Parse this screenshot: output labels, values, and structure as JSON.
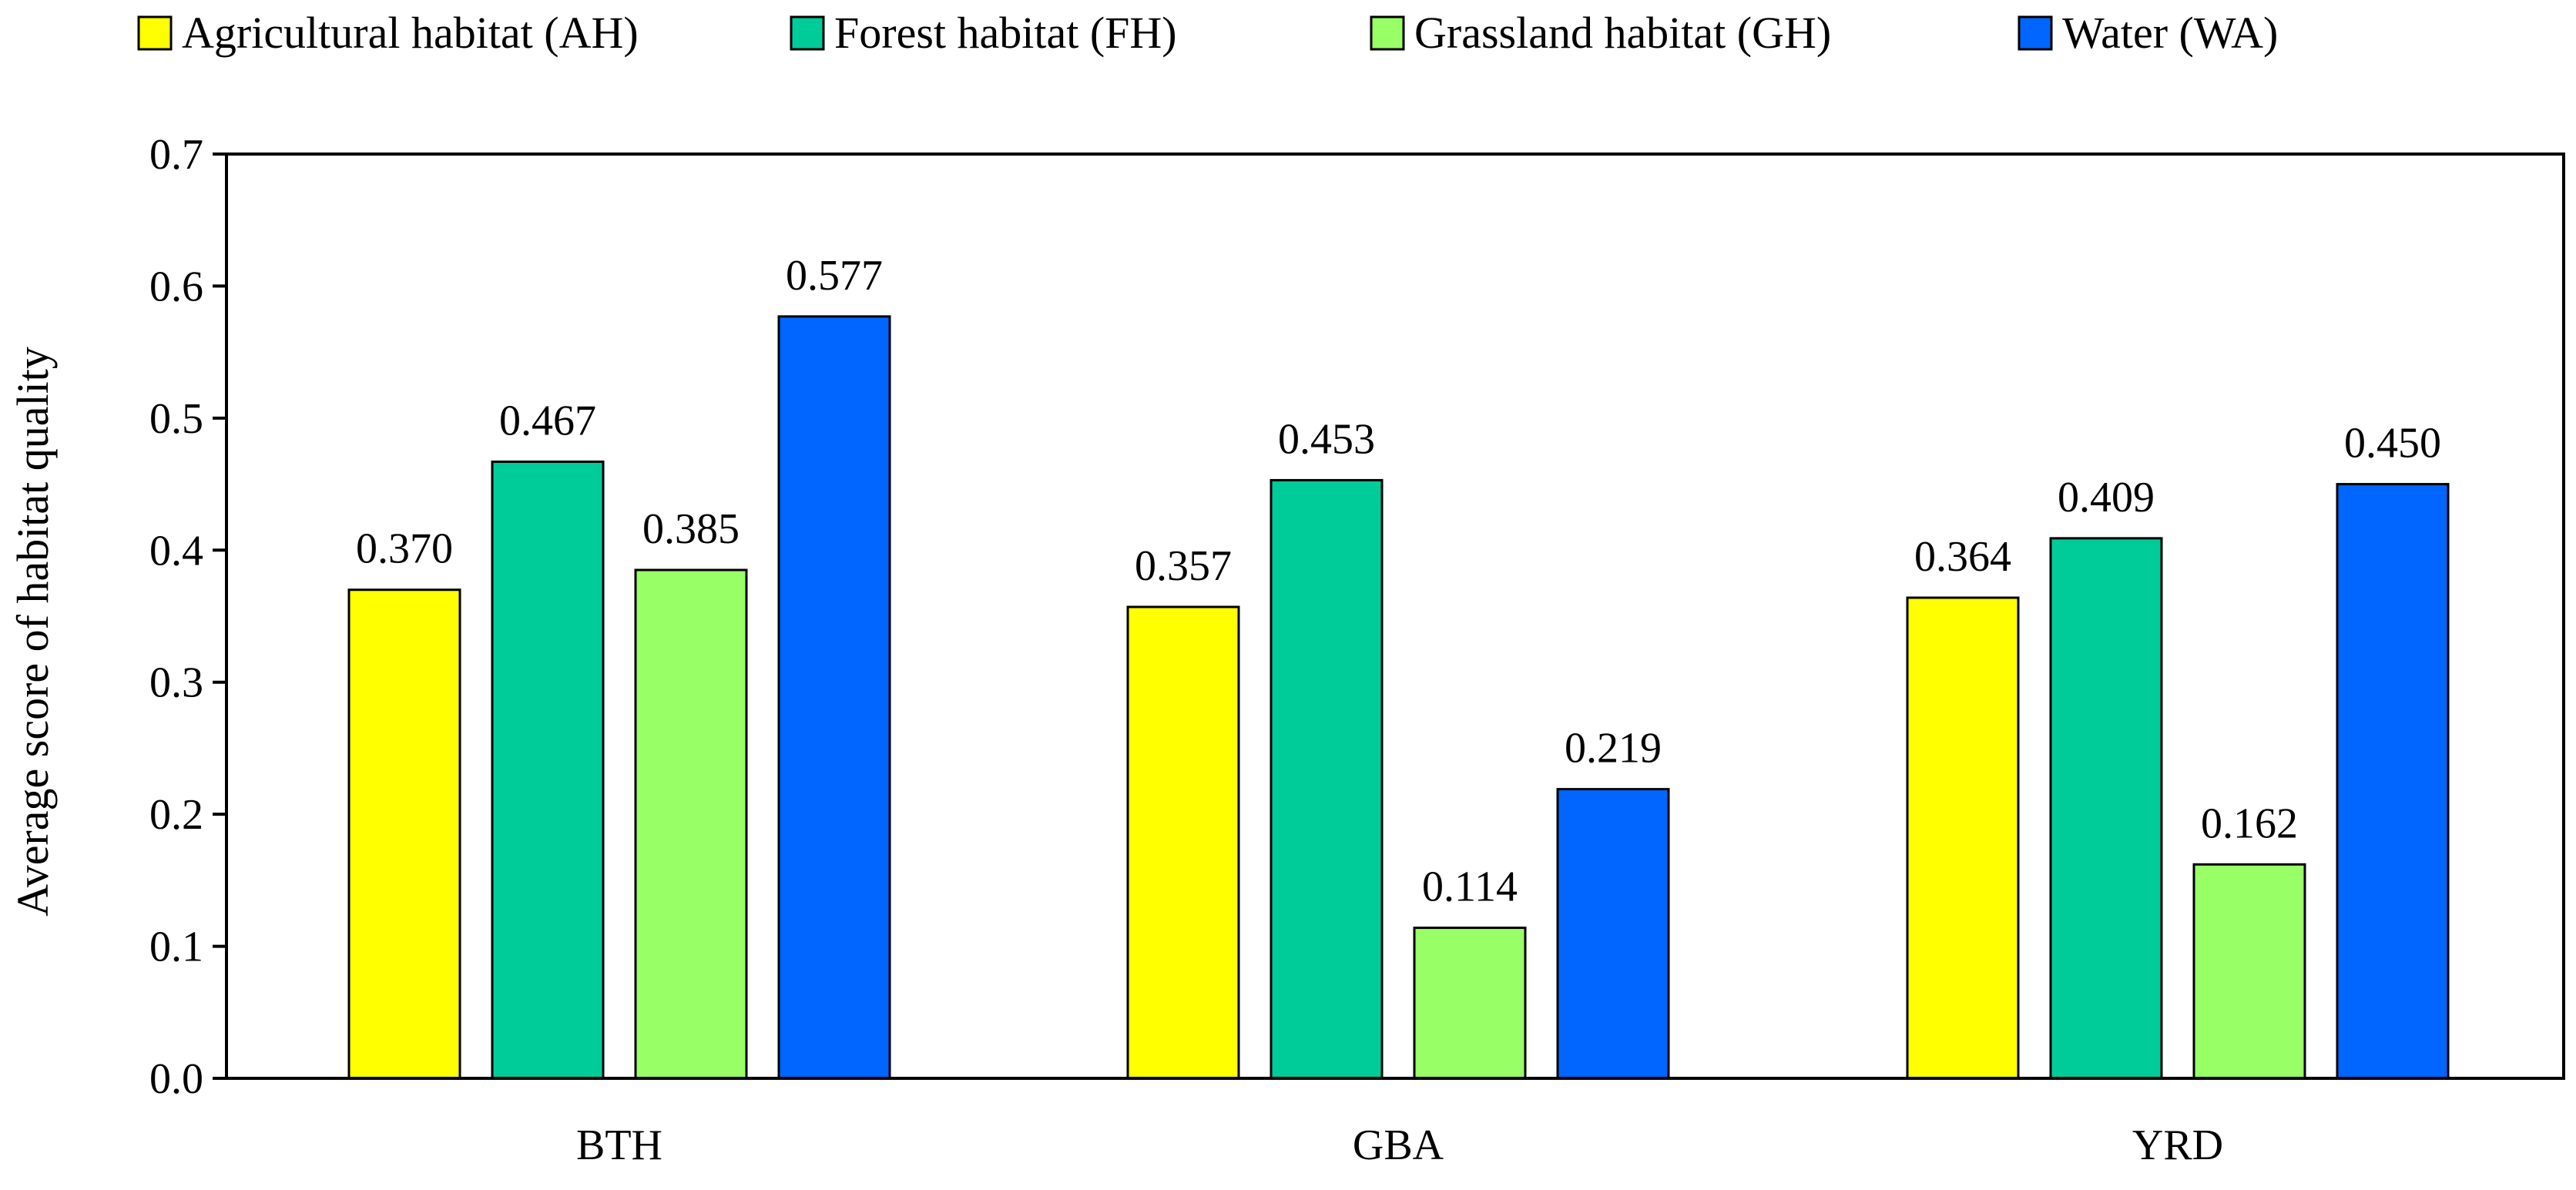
{
  "chart_data": {
    "type": "bar",
    "title": "",
    "xlabel": "",
    "ylabel": "Average score of habitat quality",
    "ylim": [
      0,
      0.7
    ],
    "yticks": [
      "0.0",
      "0.1",
      "0.2",
      "0.3",
      "0.4",
      "0.5",
      "0.6",
      "0.7"
    ],
    "grid": false,
    "legend_position": "top",
    "categories": [
      "BTH",
      "GBA",
      "YRD"
    ],
    "series": [
      {
        "name": "Agricultural habitat (AH)",
        "color": "#FFFF00",
        "values": [
          0.37,
          0.357,
          0.364
        ],
        "labels": [
          "0.370",
          "0.357",
          "0.364"
        ]
      },
      {
        "name": "Forest habitat (FH)",
        "color": "#00CC99",
        "values": [
          0.467,
          0.453,
          0.409
        ],
        "labels": [
          "0.467",
          "0.453",
          "0.409"
        ]
      },
      {
        "name": "Grassland habitat (GH)",
        "color": "#99FF66",
        "values": [
          0.385,
          0.114,
          0.162
        ],
        "labels": [
          "0.385",
          "0.114",
          "0.162"
        ]
      },
      {
        "name": "Water (WA)",
        "color": "#0066FF",
        "values": [
          0.577,
          0.219,
          0.45
        ],
        "labels": [
          "0.577",
          "0.219",
          "0.450"
        ]
      }
    ]
  }
}
